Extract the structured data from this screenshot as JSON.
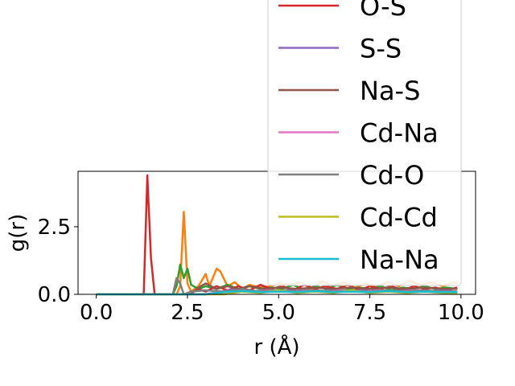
{
  "chart_data": {
    "type": "line",
    "title": "",
    "xlabel": "r (Å)",
    "ylabel": "g(r)",
    "xlim": [
      -0.5,
      10.4
    ],
    "ylim": [
      0,
      4.55
    ],
    "xticks": [
      0.0,
      2.5,
      5.0,
      7.5,
      10.0
    ],
    "xtick_labels": [
      "0.0",
      "2.5",
      "5.0",
      "7.5",
      "10.0"
    ],
    "yticks": [
      0.0,
      2.5
    ],
    "ytick_labels": [
      "0.0",
      "2.5"
    ],
    "grid": false,
    "legend_position": "upper-right",
    "series": [
      {
        "name": "",
        "color": "#ff7f0e",
        "x": [
          0.0,
          2.2,
          2.3,
          2.4,
          2.5,
          2.6,
          2.7,
          2.8,
          3.0,
          3.1,
          3.3,
          3.4,
          3.6,
          3.8,
          4.0,
          4.2,
          4.5,
          4.8,
          5.0,
          5.3,
          5.6,
          5.9,
          6.2,
          6.5,
          6.8,
          7.1,
          7.4,
          7.7,
          8.0,
          8.3,
          8.6,
          8.9,
          9.2,
          9.5,
          9.8,
          9.9
        ],
        "y": [
          0.0,
          0.0,
          0.3,
          3.05,
          0.4,
          0.1,
          0.2,
          0.3,
          0.75,
          0.3,
          0.95,
          0.85,
          0.3,
          0.45,
          0.2,
          0.35,
          0.25,
          0.3,
          0.4,
          0.35,
          0.45,
          0.2,
          0.5,
          0.3,
          0.45,
          0.25,
          0.4,
          0.3,
          0.45,
          0.3,
          0.5,
          0.35,
          0.45,
          0.3,
          0.45,
          0.4
        ]
      },
      {
        "name": "",
        "color": "#2ca02c",
        "x": [
          0.0,
          2.1,
          2.2,
          2.3,
          2.4,
          2.5,
          2.6,
          2.8,
          3.0,
          3.3,
          3.6,
          3.9,
          4.2,
          4.5,
          4.8,
          5.1,
          5.4,
          5.7,
          6.0,
          6.3,
          6.6,
          6.9,
          7.2,
          7.5,
          7.8,
          8.1,
          8.4,
          8.7,
          9.0,
          9.3,
          9.6,
          9.9
        ],
        "y": [
          0.0,
          0.0,
          0.3,
          1.1,
          0.6,
          0.95,
          0.35,
          0.2,
          0.3,
          0.2,
          0.35,
          0.2,
          0.3,
          0.2,
          0.25,
          0.2,
          0.35,
          0.15,
          0.3,
          0.2,
          0.35,
          0.2,
          0.25,
          0.2,
          0.3,
          0.15,
          0.25,
          0.2,
          0.3,
          0.2,
          0.25,
          0.2
        ]
      },
      {
        "name": "O-S",
        "color": "#d62728",
        "x": [
          0.0,
          1.3,
          1.4,
          1.5,
          1.6,
          1.7,
          2.5,
          2.8,
          3.0,
          3.3,
          3.6,
          3.9,
          4.2,
          4.5,
          4.8,
          5.1,
          5.4,
          5.7,
          6.0,
          6.3,
          6.6,
          6.9,
          7.2,
          7.5,
          7.8,
          8.1,
          8.4,
          8.7,
          9.0,
          9.3,
          9.6,
          9.9
        ],
        "y": [
          0.0,
          0.0,
          4.4,
          1.35,
          0.0,
          0.0,
          0.0,
          0.2,
          0.1,
          0.3,
          0.15,
          0.3,
          0.15,
          0.35,
          0.2,
          0.3,
          0.15,
          0.35,
          0.2,
          0.3,
          0.2,
          0.35,
          0.15,
          0.3,
          0.2,
          0.3,
          0.15,
          0.3,
          0.2,
          0.25,
          0.15,
          0.25
        ]
      },
      {
        "name": "S-S",
        "color": "#9467bd",
        "x": [
          0.0,
          3.0,
          3.4,
          3.8,
          4.2,
          4.6,
          5.0,
          5.5,
          6.0,
          6.5,
          7.0,
          7.5,
          8.0,
          8.5,
          9.0,
          9.5,
          9.9
        ],
        "y": [
          0.0,
          0.0,
          0.1,
          0.2,
          0.1,
          0.15,
          0.1,
          0.2,
          0.1,
          0.15,
          0.1,
          0.2,
          0.1,
          0.15,
          0.1,
          0.15,
          0.1
        ]
      },
      {
        "name": "Na-S",
        "color": "#8c564b",
        "x": [
          0.0,
          2.6,
          2.8,
          3.0,
          3.3,
          3.6,
          3.9,
          4.2,
          4.6,
          5.0,
          5.5,
          6.0,
          6.5,
          7.0,
          7.5,
          8.0,
          8.5,
          9.0,
          9.5,
          9.9
        ],
        "y": [
          0.0,
          0.0,
          0.25,
          0.4,
          0.2,
          0.3,
          0.2,
          0.3,
          0.2,
          0.25,
          0.2,
          0.25,
          0.2,
          0.25,
          0.2,
          0.25,
          0.2,
          0.25,
          0.2,
          0.2
        ]
      },
      {
        "name": "Cd-Na",
        "color": "#e377c2",
        "x": [
          0.0,
          3.0,
          3.4,
          3.8,
          4.3,
          4.8,
          5.3,
          5.8,
          6.3,
          6.8,
          7.3,
          7.8,
          8.3,
          8.8,
          9.3,
          9.9
        ],
        "y": [
          0.0,
          0.0,
          0.1,
          0.15,
          0.1,
          0.15,
          0.1,
          0.15,
          0.1,
          0.15,
          0.1,
          0.15,
          0.1,
          0.15,
          0.1,
          0.1
        ]
      },
      {
        "name": "Cd-O",
        "color": "#7f7f7f",
        "x": [
          0.0,
          2.1,
          2.2,
          2.3,
          2.4,
          2.6,
          3.0,
          3.5,
          4.0,
          4.5,
          5.0,
          5.5,
          6.0,
          6.5,
          7.0,
          7.5,
          8.0,
          8.5,
          9.0,
          9.5,
          9.9
        ],
        "y": [
          0.0,
          0.0,
          0.6,
          0.4,
          0.0,
          0.1,
          0.15,
          0.1,
          0.2,
          0.1,
          0.15,
          0.1,
          0.15,
          0.1,
          0.15,
          0.1,
          0.15,
          0.1,
          0.15,
          0.1,
          0.1
        ]
      },
      {
        "name": "Cd-Cd",
        "color": "#bcbd22",
        "x": [
          0.0,
          3.5,
          4.0,
          4.5,
          5.0,
          5.5,
          6.0,
          6.5,
          7.0,
          7.5,
          8.0,
          8.5,
          9.0,
          9.5,
          9.9
        ],
        "y": [
          0.0,
          0.0,
          0.1,
          0.05,
          0.15,
          0.05,
          0.1,
          0.05,
          0.15,
          0.05,
          0.1,
          0.05,
          0.1,
          0.05,
          0.05
        ]
      },
      {
        "name": "Na-Na",
        "color": "#17becf",
        "x": [
          0.0,
          3.0,
          3.5,
          4.0,
          4.5,
          5.0,
          5.5,
          6.0,
          6.5,
          7.0,
          7.5,
          8.0,
          8.5,
          9.0,
          9.5,
          9.9
        ],
        "y": [
          0.0,
          0.0,
          0.08,
          0.12,
          0.08,
          0.1,
          0.08,
          0.12,
          0.08,
          0.1,
          0.08,
          0.12,
          0.08,
          0.1,
          0.08,
          0.08
        ]
      }
    ]
  }
}
